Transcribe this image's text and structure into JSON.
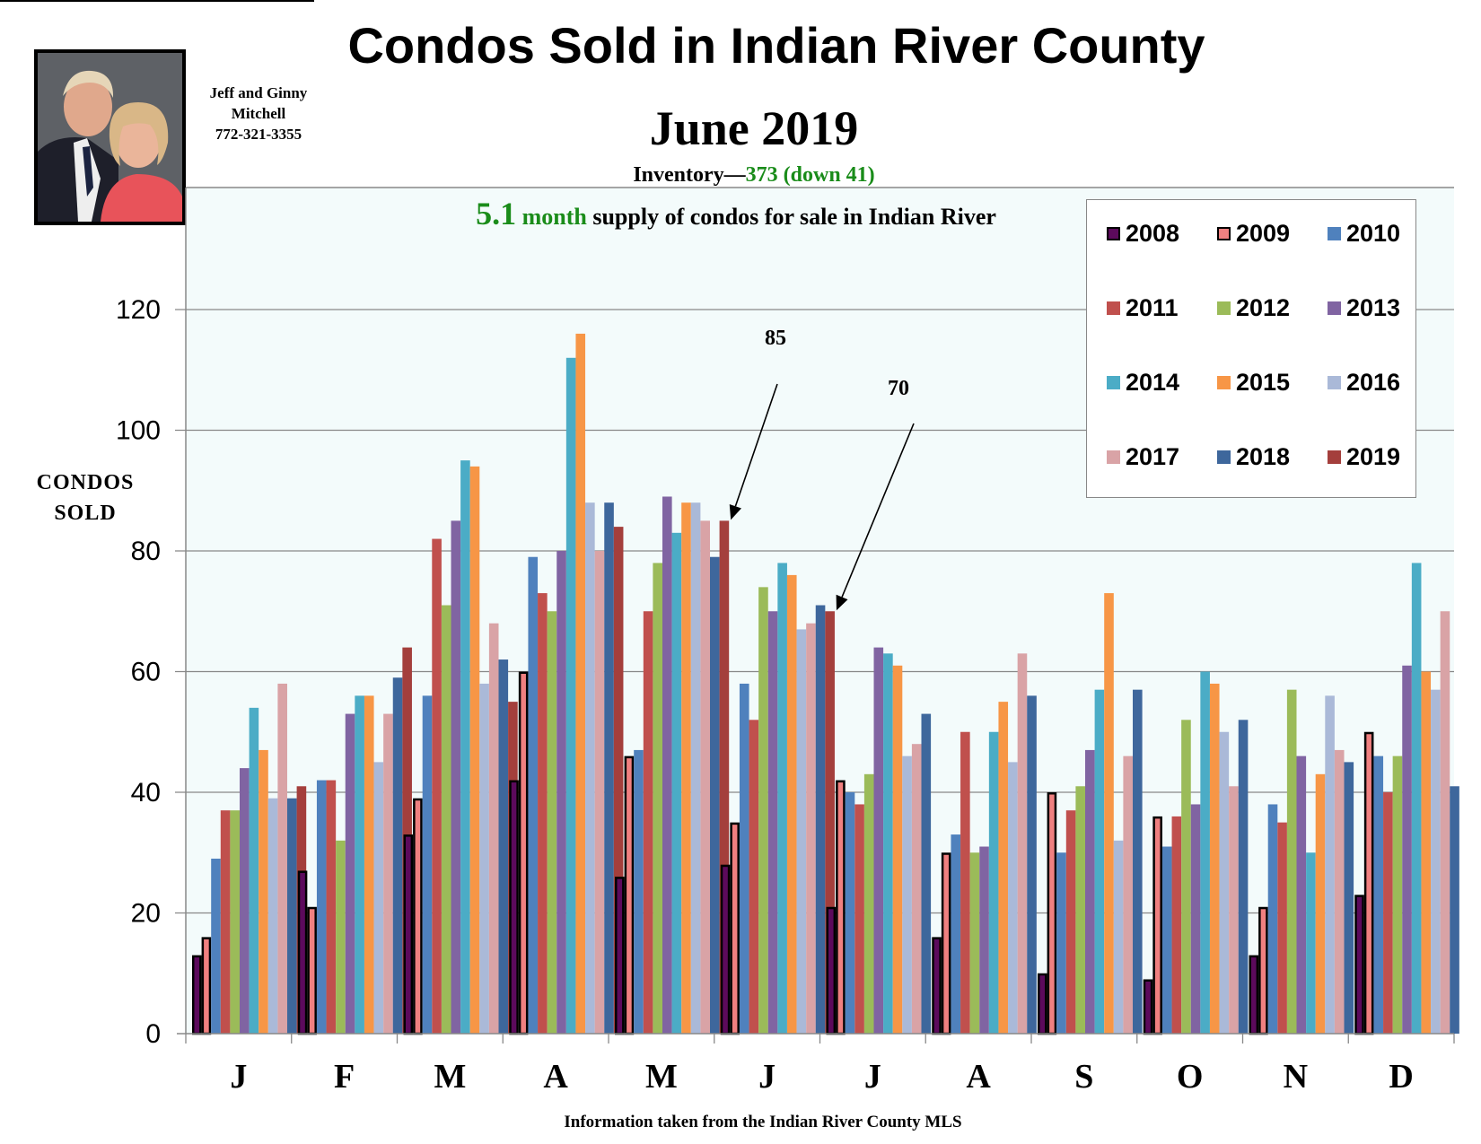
{
  "header": {
    "title": "Condos Sold in Indian River County",
    "subtitle": "June 2019",
    "inventory_label": "Inventory—",
    "inventory_value": "373 (down 41)",
    "supply_number": "5.1",
    "supply_unit": "month",
    "supply_text": " supply of condos for sale in Indian River"
  },
  "agent": {
    "line1": "Jeff and Ginny",
    "line2": "Mitchell",
    "phone": "772-321-3355"
  },
  "footer": {
    "caption": "Information taken from the Indian River County MLS"
  },
  "annotations": [
    {
      "label": "85",
      "month_index": 4,
      "series_index": 11,
      "value": 85
    },
    {
      "label": "70",
      "month_index": 5,
      "series_index": 11,
      "value": 70
    }
  ],
  "colors": {
    "plot_bg": "#f3fbfb",
    "grid": "#888888"
  },
  "chart_data": {
    "type": "bar",
    "title": "Condos Sold in Indian River County",
    "subtitle": "June 2019",
    "xlabel": "",
    "ylabel_line1": "CONDOS",
    "ylabel_line2": "SOLD",
    "ylim": [
      0,
      120
    ],
    "yticks": [
      "0",
      "20",
      "40",
      "60",
      "80",
      "100",
      "120"
    ],
    "ytick_values": [
      0,
      20,
      40,
      60,
      80,
      100,
      120
    ],
    "grid": true,
    "legend_position": "top-right",
    "categories": [
      "J",
      "F",
      "M",
      "A",
      "M",
      "J",
      "J",
      "A",
      "S",
      "O",
      "N",
      "D"
    ],
    "series": [
      {
        "name": "2008",
        "color": "#5c0a5c",
        "outlined": true,
        "values": [
          13,
          27,
          33,
          42,
          26,
          28,
          21,
          16,
          10,
          9,
          13,
          23
        ]
      },
      {
        "name": "2009",
        "color": "#f08080",
        "outlined": true,
        "values": [
          16,
          21,
          39,
          60,
          46,
          35,
          42,
          30,
          40,
          36,
          21,
          50
        ]
      },
      {
        "name": "2010",
        "color": "#4f81bd",
        "outlined": false,
        "values": [
          29,
          42,
          56,
          79,
          47,
          58,
          40,
          33,
          30,
          31,
          38,
          46
        ]
      },
      {
        "name": "2011",
        "color": "#c0504d",
        "outlined": false,
        "values": [
          37,
          42,
          82,
          73,
          70,
          52,
          38,
          50,
          37,
          36,
          35,
          40
        ]
      },
      {
        "name": "2012",
        "color": "#9bbb59",
        "outlined": false,
        "values": [
          37,
          32,
          71,
          70,
          78,
          74,
          43,
          30,
          41,
          52,
          57,
          46
        ]
      },
      {
        "name": "2013",
        "color": "#8064a2",
        "outlined": false,
        "values": [
          44,
          53,
          85,
          80,
          89,
          70,
          64,
          31,
          47,
          38,
          46,
          61
        ]
      },
      {
        "name": "2014",
        "color": "#4bacc6",
        "outlined": false,
        "values": [
          54,
          56,
          95,
          112,
          83,
          78,
          63,
          50,
          57,
          60,
          30,
          78
        ]
      },
      {
        "name": "2015",
        "color": "#f79646",
        "outlined": false,
        "values": [
          47,
          56,
          94,
          116,
          88,
          76,
          61,
          55,
          73,
          58,
          43,
          60
        ]
      },
      {
        "name": "2016",
        "color": "#aab9d8",
        "outlined": false,
        "values": [
          39,
          45,
          58,
          88,
          88,
          67,
          46,
          45,
          32,
          50,
          56,
          57
        ]
      },
      {
        "name": "2017",
        "color": "#d9a3a6",
        "outlined": false,
        "values": [
          58,
          53,
          68,
          80,
          85,
          68,
          48,
          63,
          46,
          41,
          47,
          70
        ]
      },
      {
        "name": "2018",
        "color": "#3e679c",
        "outlined": false,
        "values": [
          39,
          59,
          62,
          88,
          79,
          71,
          53,
          56,
          57,
          52,
          45,
          41
        ]
      },
      {
        "name": "2019",
        "color": "#a43f3c",
        "outlined": false,
        "values": [
          41,
          64,
          55,
          84,
          85,
          70,
          null,
          null,
          null,
          null,
          null,
          null
        ]
      }
    ]
  }
}
